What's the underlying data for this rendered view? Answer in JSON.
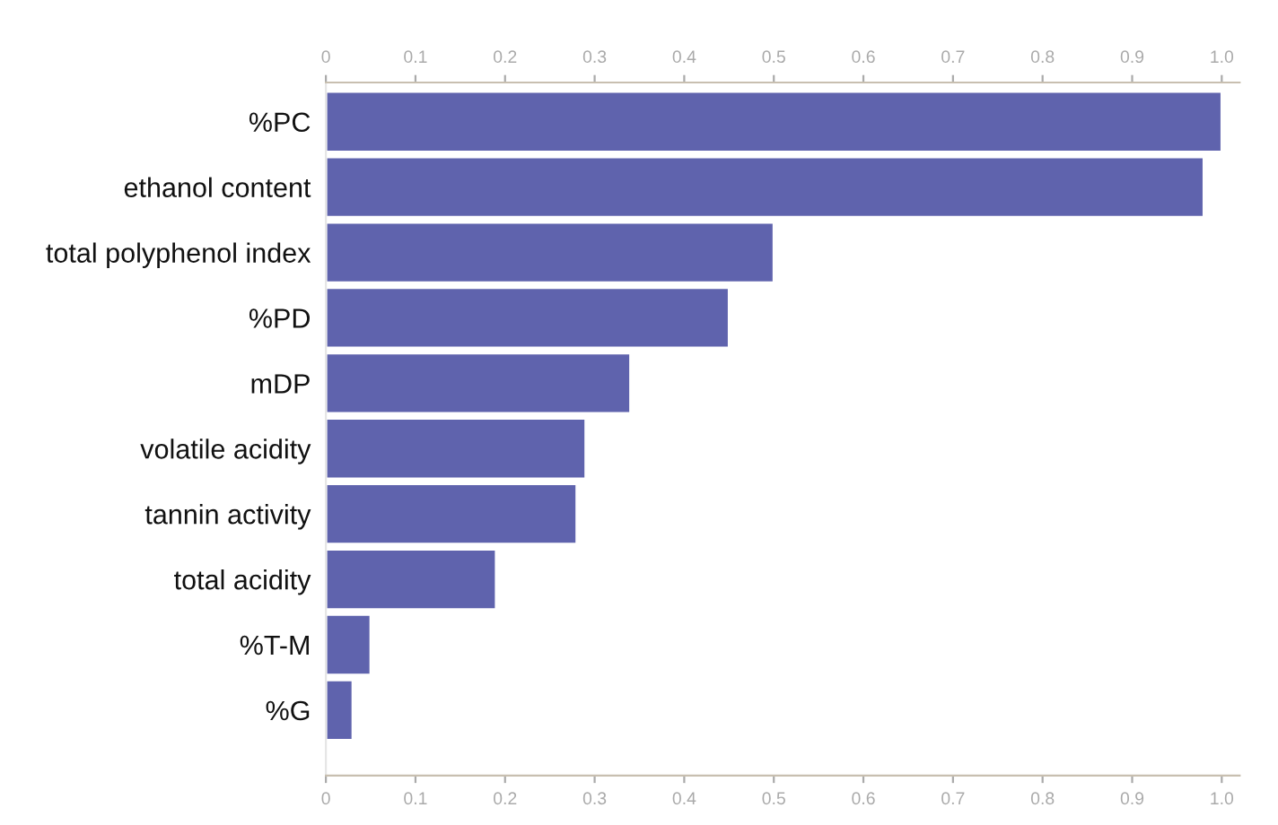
{
  "chart_data": {
    "type": "bar",
    "orientation": "horizontal",
    "categories": [
      "%PC",
      "ethanol content",
      "total polyphenol index",
      "%PD",
      "mDP",
      "volatile acidity",
      "tannin activity",
      "total acidity",
      "%T-M",
      "%G"
    ],
    "values": [
      1.0,
      0.98,
      0.5,
      0.45,
      0.34,
      0.29,
      0.28,
      0.19,
      0.05,
      0.03
    ],
    "color": "#5f63ad",
    "xlim": [
      0,
      1.02
    ],
    "xticks": [
      0,
      {
        "value": 0.1,
        "label": "0.1"
      },
      {
        "value": 0.2,
        "label": "0.2"
      },
      {
        "value": 0.3,
        "label": "0.3"
      },
      {
        "value": 0.4,
        "label": "0.4"
      },
      {
        "value": 0.5,
        "label": "0.5"
      },
      {
        "value": 0.6,
        "label": "0.6"
      },
      {
        "value": 0.7,
        "label": "0.7"
      },
      {
        "value": 0.8,
        "label": "0.8"
      },
      {
        "value": 0.9,
        "label": "0.9"
      },
      {
        "value": 1.0,
        "label": "1.0"
      }
    ],
    "x2lim": [
      0,
      1.02
    ],
    "x2ticks": [
      0,
      {
        "value": 0.1,
        "label": "0.1"
      },
      {
        "value": 0.2,
        "label": "0.2"
      },
      {
        "value": 0.3,
        "label": "0.3"
      },
      {
        "value": 0.4,
        "label": "0.4"
      },
      {
        "value": 0.5,
        "label": "0.5"
      },
      {
        "value": 0.6,
        "label": "0.6"
      },
      {
        "value": 0.7,
        "label": "0.7"
      },
      {
        "value": 0.8,
        "label": "0.8"
      },
      {
        "value": 0.9,
        "label": "0.9"
      },
      {
        "value": 1.0,
        "label": "1.0"
      }
    ],
    "grid": false,
    "legend": false
  }
}
